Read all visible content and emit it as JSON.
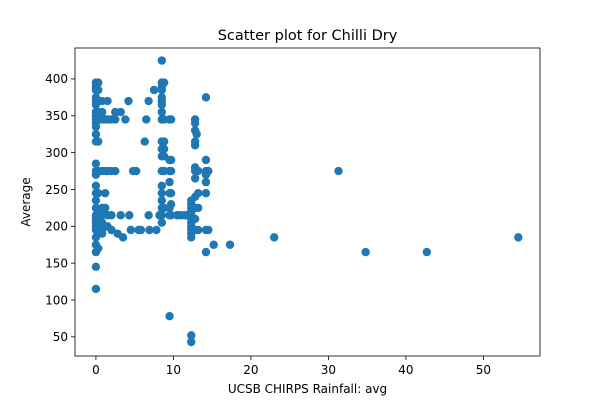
{
  "chart_data": {
    "type": "scatter",
    "title": "Scatter plot for Chilli Dry",
    "xlabel": "UCSB CHIRPS Rainfall: avg",
    "ylabel": "Average",
    "xlim": [
      -2.7,
      57.3
    ],
    "ylim": [
      24,
      442
    ],
    "xticks": [
      0,
      10,
      20,
      30,
      40,
      50
    ],
    "yticks": [
      50,
      100,
      150,
      200,
      250,
      300,
      350,
      400
    ],
    "grid": false,
    "marker_color": "#1f77b4",
    "series": [
      {
        "points": [
          [
            0,
            395
          ],
          [
            0,
            390
          ],
          [
            0,
            385
          ],
          [
            0,
            375
          ],
          [
            0,
            370
          ],
          [
            0,
            365
          ],
          [
            0,
            355
          ],
          [
            0,
            350
          ],
          [
            0,
            345
          ],
          [
            0,
            340
          ],
          [
            0,
            335
          ],
          [
            0,
            325
          ],
          [
            0,
            315
          ],
          [
            0,
            285
          ],
          [
            0,
            275
          ],
          [
            0,
            270
          ],
          [
            0,
            255
          ],
          [
            0,
            245
          ],
          [
            0,
            235
          ],
          [
            0,
            225
          ],
          [
            0,
            215
          ],
          [
            0,
            210
          ],
          [
            0,
            205
          ],
          [
            0,
            200
          ],
          [
            0,
            195
          ],
          [
            0,
            185
          ],
          [
            0,
            175
          ],
          [
            0,
            165
          ],
          [
            0,
            145
          ],
          [
            0,
            115
          ],
          [
            0.3,
            395
          ],
          [
            0.3,
            385
          ],
          [
            0.3,
            370
          ],
          [
            0.3,
            355
          ],
          [
            0.3,
            345
          ],
          [
            0.3,
            315
          ],
          [
            0.3,
            275
          ],
          [
            0.3,
            245
          ],
          [
            0.3,
            215
          ],
          [
            0.3,
            205
          ],
          [
            0.3,
            195
          ],
          [
            0.3,
            170
          ],
          [
            0.8,
            370
          ],
          [
            0.8,
            355
          ],
          [
            0.8,
            345
          ],
          [
            0.8,
            275
          ],
          [
            0.8,
            225
          ],
          [
            0.8,
            215
          ],
          [
            0.8,
            205
          ],
          [
            0.8,
            195
          ],
          [
            0.8,
            190
          ],
          [
            1.2,
            345
          ],
          [
            1.2,
            275
          ],
          [
            1.2,
            245
          ],
          [
            1.2,
            225
          ],
          [
            1.2,
            200
          ],
          [
            1.5,
            370
          ],
          [
            1.5,
            345
          ],
          [
            1.5,
            275
          ],
          [
            1.5,
            215
          ],
          [
            1.5,
            200
          ],
          [
            2.0,
            345
          ],
          [
            2.0,
            275
          ],
          [
            2.0,
            215
          ],
          [
            2.0,
            195
          ],
          [
            2.5,
            355
          ],
          [
            2.5,
            345
          ],
          [
            2.5,
            275
          ],
          [
            2.8,
            190
          ],
          [
            3.2,
            355
          ],
          [
            3.2,
            215
          ],
          [
            3.5,
            185
          ],
          [
            3.8,
            345
          ],
          [
            4.2,
            370
          ],
          [
            4.3,
            215
          ],
          [
            4.5,
            195
          ],
          [
            4.8,
            275
          ],
          [
            5.2,
            275
          ],
          [
            5.5,
            195
          ],
          [
            5.8,
            195
          ],
          [
            6.3,
            315
          ],
          [
            6.5,
            345
          ],
          [
            6.8,
            370
          ],
          [
            6.8,
            215
          ],
          [
            6.9,
            195
          ],
          [
            7.5,
            385
          ],
          [
            7.8,
            195
          ],
          [
            8.2,
            215
          ],
          [
            8.5,
            425
          ],
          [
            8.5,
            395
          ],
          [
            8.5,
            390
          ],
          [
            8.5,
            385
          ],
          [
            8.5,
            375
          ],
          [
            8.5,
            370
          ],
          [
            8.5,
            365
          ],
          [
            8.5,
            355
          ],
          [
            8.5,
            345
          ],
          [
            8.5,
            315
          ],
          [
            8.5,
            305
          ],
          [
            8.5,
            295
          ],
          [
            8.5,
            275
          ],
          [
            8.5,
            255
          ],
          [
            8.5,
            245
          ],
          [
            8.5,
            235
          ],
          [
            8.5,
            225
          ],
          [
            8.5,
            215
          ],
          [
            8.5,
            205
          ],
          [
            8.8,
            395
          ],
          [
            8.8,
            345
          ],
          [
            8.8,
            315
          ],
          [
            8.8,
            305
          ],
          [
            8.8,
            295
          ],
          [
            8.8,
            275
          ],
          [
            8.8,
            225
          ],
          [
            9.5,
            345
          ],
          [
            9.5,
            290
          ],
          [
            9.5,
            275
          ],
          [
            9.5,
            260
          ],
          [
            9.5,
            245
          ],
          [
            9.5,
            225
          ],
          [
            9.5,
            215
          ],
          [
            9.7,
            345
          ],
          [
            9.7,
            290
          ],
          [
            9.7,
            275
          ],
          [
            9.7,
            245
          ],
          [
            9.7,
            230
          ],
          [
            9.7,
            215
          ],
          [
            9.5,
            78
          ],
          [
            10.5,
            215
          ],
          [
            10.5,
            215
          ],
          [
            11.0,
            215
          ],
          [
            11.5,
            215
          ],
          [
            11.8,
            215
          ],
          [
            12.3,
            235
          ],
          [
            12.3,
            230
          ],
          [
            12.3,
            225
          ],
          [
            12.3,
            220
          ],
          [
            12.3,
            215
          ],
          [
            12.3,
            210
          ],
          [
            12.3,
            205
          ],
          [
            12.3,
            200
          ],
          [
            12.3,
            195
          ],
          [
            12.3,
            190
          ],
          [
            12.3,
            185
          ],
          [
            12.3,
            52
          ],
          [
            12.3,
            43
          ],
          [
            12.8,
            345
          ],
          [
            12.8,
            340
          ],
          [
            12.8,
            330
          ],
          [
            12.8,
            315
          ],
          [
            12.8,
            310
          ],
          [
            12.8,
            280
          ],
          [
            12.8,
            275
          ],
          [
            12.8,
            265
          ],
          [
            12.8,
            240
          ],
          [
            12.8,
            225
          ],
          [
            12.8,
            210
          ],
          [
            12.8,
            195
          ],
          [
            13.0,
            325
          ],
          [
            13.2,
            275
          ],
          [
            13.2,
            245
          ],
          [
            13.2,
            225
          ],
          [
            13.2,
            195
          ],
          [
            14.2,
            375
          ],
          [
            14.2,
            290
          ],
          [
            14.2,
            275
          ],
          [
            14.2,
            270
          ],
          [
            14.2,
            260
          ],
          [
            14.2,
            245
          ],
          [
            14.2,
            195
          ],
          [
            14.2,
            165
          ],
          [
            14.5,
            275
          ],
          [
            14.5,
            195
          ],
          [
            15.2,
            175
          ],
          [
            17.3,
            175
          ],
          [
            23.0,
            185
          ],
          [
            31.3,
            275
          ],
          [
            34.8,
            165
          ],
          [
            42.7,
            165
          ],
          [
            54.5,
            185
          ]
        ]
      }
    ]
  }
}
